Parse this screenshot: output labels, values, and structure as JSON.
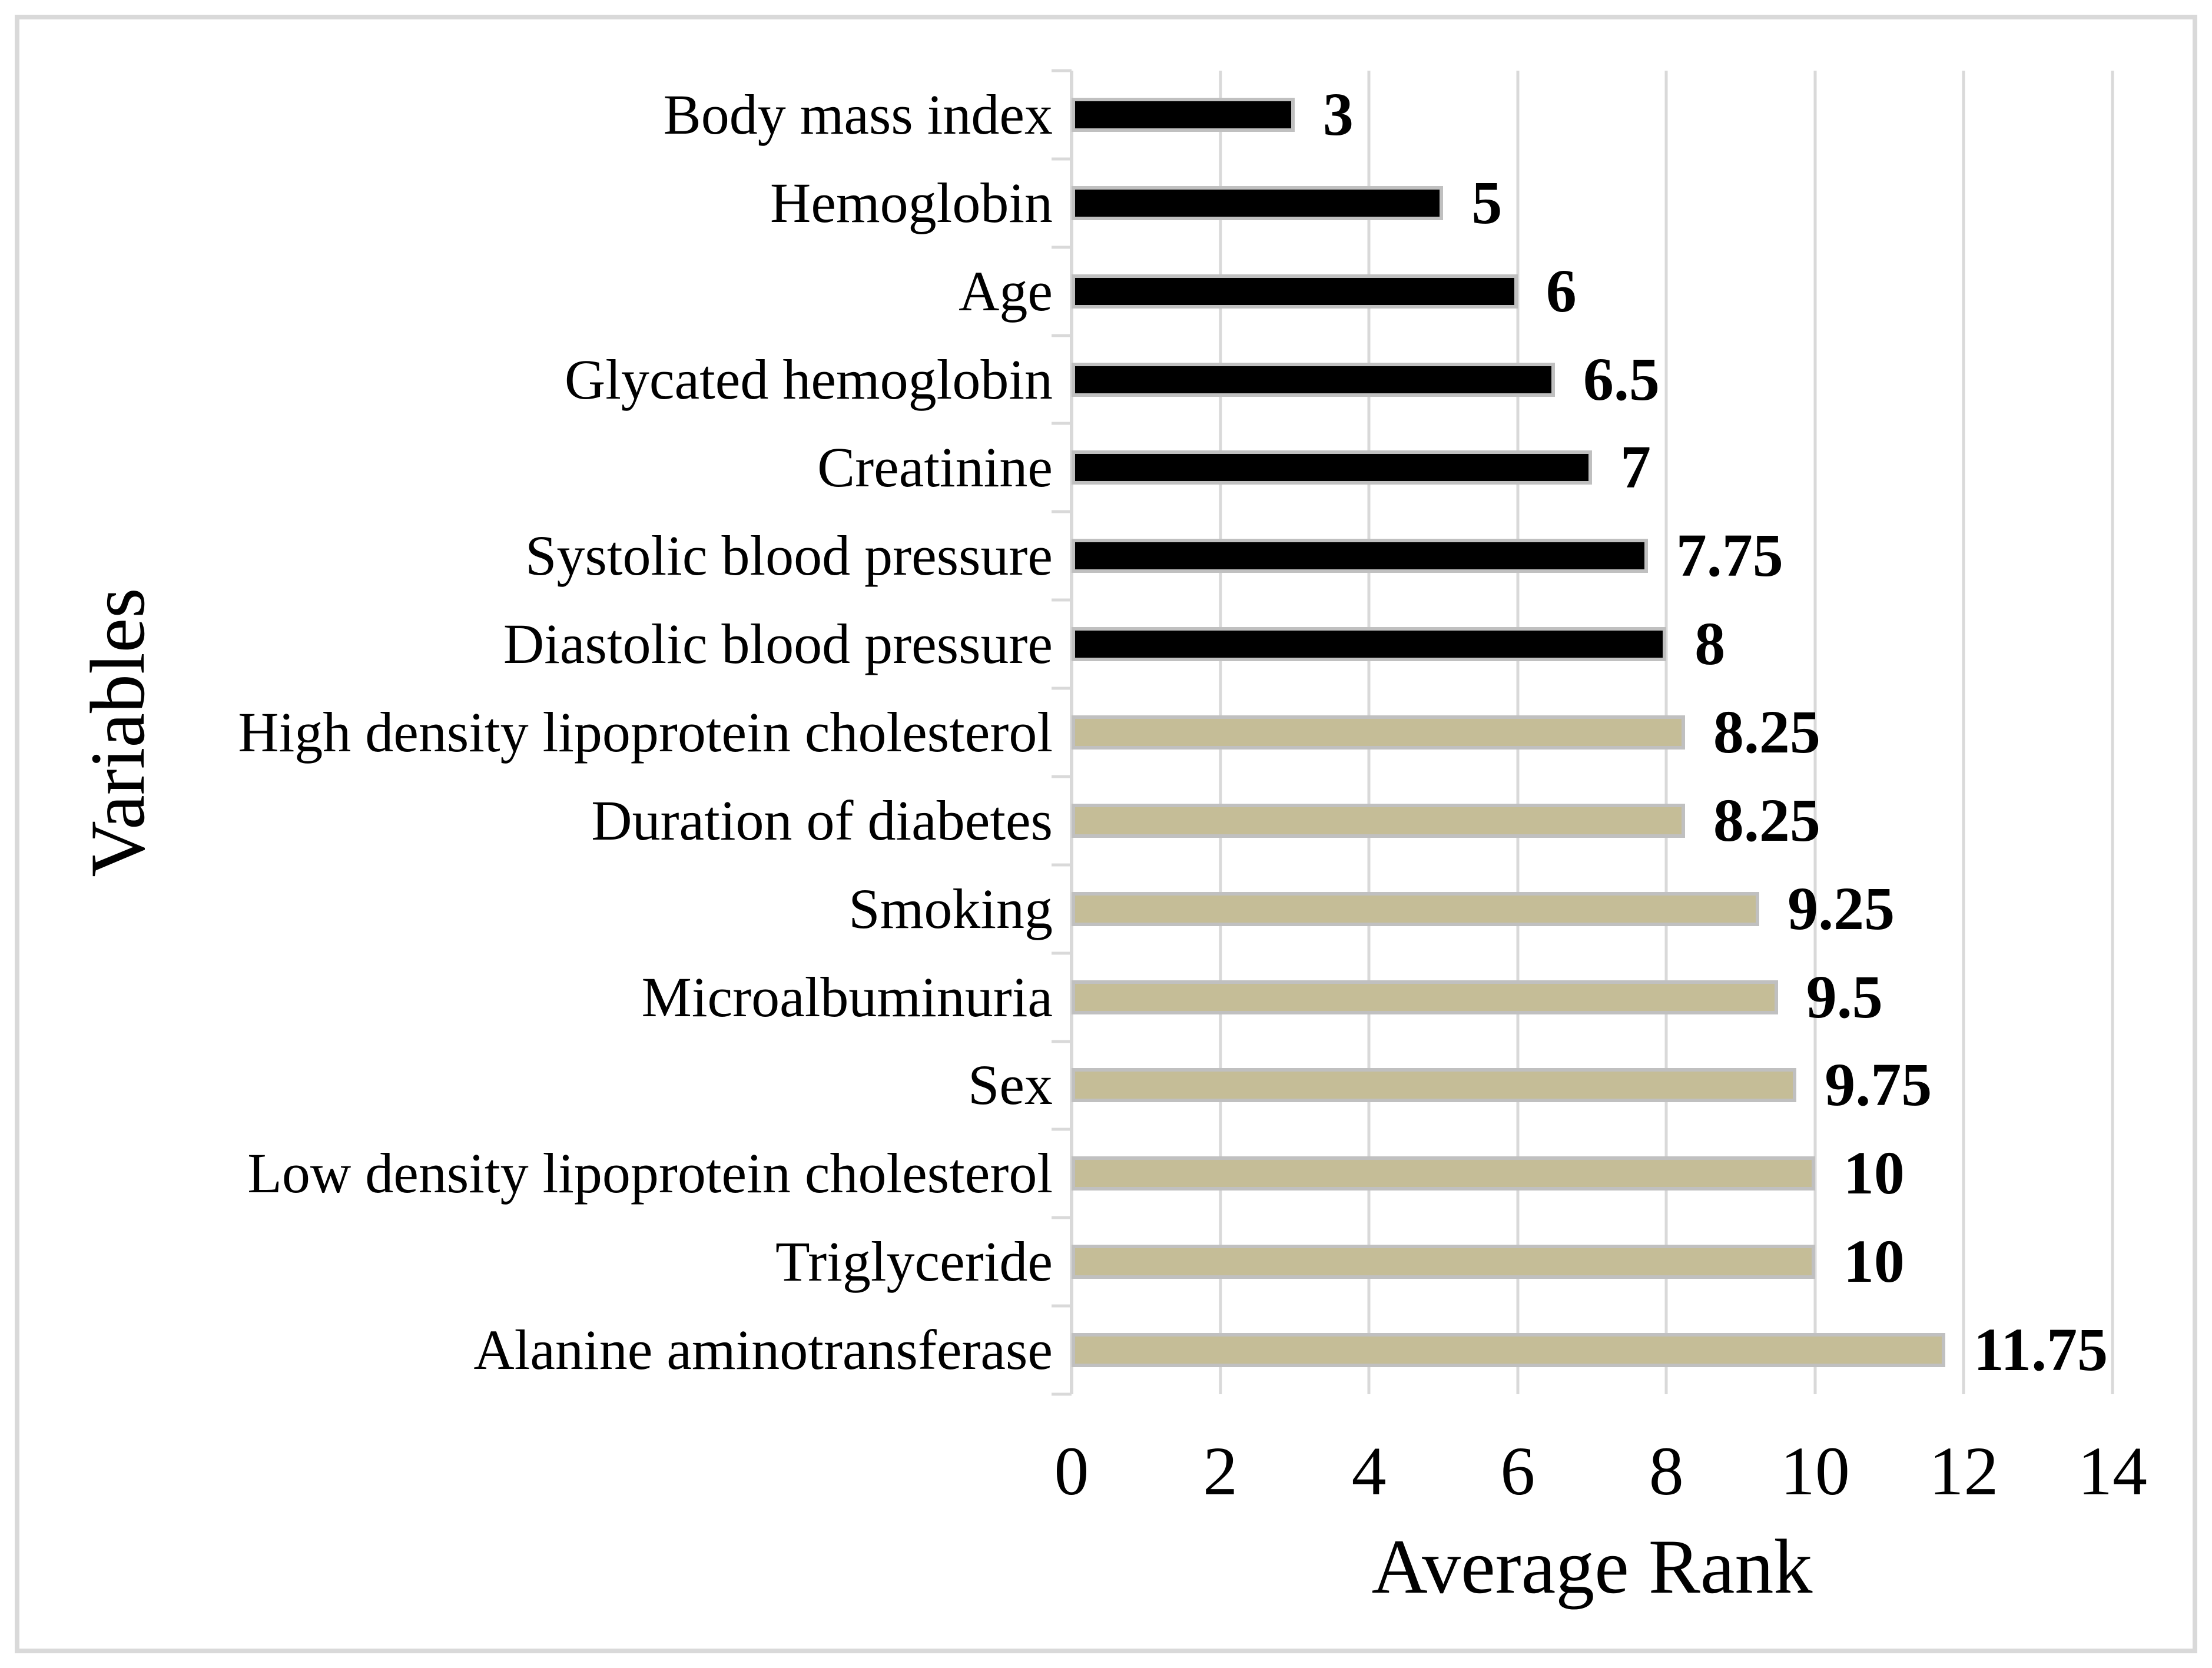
{
  "chart_data": {
    "type": "bar",
    "orientation": "horizontal",
    "title": "",
    "xlabel": "Average Rank",
    "ylabel": "Variables",
    "categories": [
      "Body mass index",
      "Hemoglobin",
      "Age",
      "Glycated hemoglobin",
      "Creatinine",
      "Systolic blood pressure",
      "Diastolic blood pressure",
      "High density lipoprotein cholesterol",
      "Duration of diabetes",
      "Smoking",
      "Microalbuminuria",
      "Sex",
      "Low density lipoprotein cholesterol",
      "Triglyceride",
      "Alanine aminotransferase"
    ],
    "values": [
      3,
      5,
      6,
      6.5,
      7,
      7.75,
      8,
      8.25,
      8.25,
      9.25,
      9.5,
      9.75,
      10,
      10,
      11.75
    ],
    "value_labels": [
      "3",
      "5",
      "6",
      "6.5",
      "7",
      "7.75",
      "8",
      "8.25",
      "8.25",
      "9.25",
      "9.5",
      "9.75",
      "10",
      "10",
      "11.75"
    ],
    "bar_colors": [
      "#000000",
      "#000000",
      "#000000",
      "#000000",
      "#000000",
      "#000000",
      "#000000",
      "#C5BD97",
      "#C5BD97",
      "#C5BD97",
      "#C5BD97",
      "#C5BD97",
      "#C5BD97",
      "#C5BD97",
      "#C5BD97"
    ],
    "x_ticks": [
      0,
      2,
      4,
      6,
      8,
      10,
      12,
      14
    ],
    "x_tick_labels": [
      "0",
      "2",
      "4",
      "6",
      "8",
      "10",
      "12",
      "14"
    ],
    "xlim": [
      0,
      14
    ],
    "grid": "vertical",
    "legend": "none"
  },
  "colors": {
    "black_bar": "#000000",
    "tan_bar": "#C5BD97",
    "bar_border": "#C0C0C0",
    "gridline": "#D9D9D9",
    "frame_border": "#D9D9D9",
    "text": "#000000",
    "background": "#FFFFFF"
  }
}
